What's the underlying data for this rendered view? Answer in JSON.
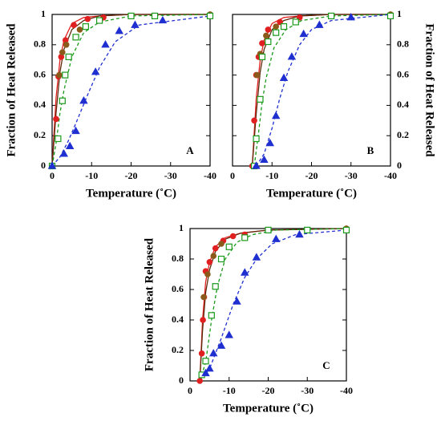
{
  "chart_data": [
    {
      "type": "scatter",
      "panel": "A",
      "xlabel": "Temperature (˚C)",
      "ylabel": "Fraction of Heat Released",
      "yaxis_side": "left",
      "xlim": [
        0,
        -40
      ],
      "ylim": [
        0,
        1
      ],
      "xticks": [
        0,
        -10,
        -20,
        -30,
        -40
      ],
      "yticks": [
        0,
        0.2,
        0.4,
        0.6,
        0.8,
        1
      ],
      "lines": [
        {
          "color": "#e02020",
          "dashed": false,
          "x": [
            0,
            -1,
            -2,
            -3,
            -5,
            -8,
            -12,
            -20,
            -40
          ],
          "values": [
            0,
            0.45,
            0.7,
            0.83,
            0.94,
            0.98,
            0.99,
            1,
            1
          ]
        },
        {
          "color": "#5a2a0a",
          "dashed": false,
          "x": [
            0,
            -1,
            -2,
            -3,
            -5,
            -8,
            -12,
            -20,
            -40
          ],
          "values": [
            0,
            0.35,
            0.62,
            0.77,
            0.9,
            0.96,
            0.99,
            1,
            1
          ]
        },
        {
          "color": "#1a9a1a",
          "dashed": true,
          "x": [
            0,
            -1,
            -2,
            -3,
            -5,
            -8,
            -12,
            -20,
            -40
          ],
          "values": [
            0,
            0.15,
            0.35,
            0.5,
            0.72,
            0.88,
            0.95,
            0.99,
            1
          ]
        },
        {
          "color": "#1f2fd0",
          "dashed": true,
          "x": [
            0,
            -2,
            -4,
            -6,
            -9,
            -12,
            -16,
            -22,
            -40
          ],
          "values": [
            0,
            0.06,
            0.16,
            0.28,
            0.47,
            0.65,
            0.82,
            0.93,
            0.99
          ]
        }
      ],
      "series": [
        {
          "color": "#e02020",
          "marker": "circle",
          "filled": true,
          "x": [
            0,
            -1,
            -1.6,
            -2.3,
            -3.4,
            -5.5,
            -9,
            -13,
            -40
          ],
          "values": [
            0,
            0.31,
            0.59,
            0.72,
            0.83,
            0.93,
            0.97,
            0.98,
            1
          ]
        },
        {
          "color": "#8b5a1a",
          "marker": "circle",
          "filled": true,
          "x": [
            -1.8,
            -2.6,
            -3.6,
            -7,
            -40
          ],
          "values": [
            0.6,
            0.75,
            0.8,
            0.9,
            1
          ]
        },
        {
          "color": "#1a9a1a",
          "marker": "square",
          "filled": false,
          "x": [
            0,
            -1.5,
            -2.6,
            -3.3,
            -4.2,
            -6,
            -8.5,
            -12,
            -20,
            -26,
            -40
          ],
          "values": [
            0,
            0.18,
            0.43,
            0.6,
            0.72,
            0.85,
            0.92,
            0.96,
            0.99,
            0.99,
            0.99
          ]
        },
        {
          "color": "#1f2fd0",
          "marker": "triangle",
          "filled": true,
          "x": [
            0,
            -3,
            -4.5,
            -6,
            -8,
            -11,
            -13.5,
            -17,
            -21,
            -28
          ],
          "values": [
            0,
            0.08,
            0.13,
            0.23,
            0.43,
            0.62,
            0.8,
            0.89,
            0.93,
            0.96
          ]
        }
      ]
    },
    {
      "type": "scatter",
      "panel": "B",
      "xlabel": "Temperature (˚C)",
      "ylabel": "Fraction of Heat Released",
      "yaxis_side": "right",
      "xlim": [
        0,
        -40
      ],
      "ylim": [
        0,
        1
      ],
      "xticks": [
        0,
        -10,
        -20,
        -30,
        -40
      ],
      "yticks": [
        0,
        0.2,
        0.4,
        0.6,
        0.8,
        1
      ],
      "lines": [
        {
          "color": "#e02020",
          "dashed": false,
          "x": [
            -5,
            -6,
            -7,
            -8,
            -10,
            -13,
            -17,
            -25,
            -40
          ],
          "values": [
            0,
            0.45,
            0.7,
            0.83,
            0.94,
            0.98,
            0.99,
            1,
            1
          ]
        },
        {
          "color": "#5a2a0a",
          "dashed": false,
          "x": [
            -5,
            -6,
            -7,
            -8,
            -10,
            -13,
            -17,
            -25,
            -40
          ],
          "values": [
            0,
            0.35,
            0.62,
            0.77,
            0.9,
            0.96,
            0.99,
            1,
            1
          ]
        },
        {
          "color": "#1a9a1a",
          "dashed": true,
          "x": [
            -5.5,
            -6.5,
            -7.5,
            -8.5,
            -10.5,
            -13.5,
            -17.5,
            -25,
            -40
          ],
          "values": [
            0,
            0.2,
            0.42,
            0.58,
            0.78,
            0.9,
            0.96,
            0.99,
            1
          ]
        },
        {
          "color": "#1f2fd0",
          "dashed": true,
          "x": [
            -6,
            -8,
            -10,
            -12,
            -14,
            -17,
            -20,
            -25,
            -40
          ],
          "values": [
            0,
            0.08,
            0.25,
            0.45,
            0.62,
            0.8,
            0.9,
            0.96,
            1
          ]
        }
      ],
      "series": [
        {
          "color": "#e02020",
          "marker": "circle",
          "filled": true,
          "x": [
            -5,
            -5.5,
            -6,
            -6.6,
            -7.5,
            -9,
            -12,
            -17,
            -40
          ],
          "values": [
            0,
            0.3,
            0.6,
            0.72,
            0.81,
            0.9,
            0.95,
            0.98,
            1
          ]
        },
        {
          "color": "#8b5a1a",
          "marker": "circle",
          "filled": true,
          "x": [
            -6.2,
            -7,
            -8.5,
            -11,
            -40
          ],
          "values": [
            0.6,
            0.74,
            0.86,
            0.92,
            1
          ]
        },
        {
          "color": "#1a9a1a",
          "marker": "square",
          "filled": false,
          "x": [
            -5.5,
            -6,
            -7,
            -7.5,
            -9,
            -11,
            -13,
            -16,
            -25,
            -40
          ],
          "values": [
            0,
            0.18,
            0.44,
            0.72,
            0.82,
            0.88,
            0.92,
            0.95,
            0.99,
            0.99
          ]
        },
        {
          "color": "#1f2fd0",
          "marker": "triangle",
          "filled": true,
          "x": [
            -6,
            -8,
            -9.5,
            -11,
            -13,
            -15,
            -18,
            -22,
            -30
          ],
          "values": [
            0,
            0.04,
            0.15,
            0.33,
            0.58,
            0.72,
            0.87,
            0.93,
            0.98
          ]
        }
      ]
    },
    {
      "type": "scatter",
      "panel": "C",
      "xlabel": "Temperature (˚C)",
      "ylabel": "Fraction of Heat Released",
      "yaxis_side": "left",
      "xlim": [
        0,
        -40
      ],
      "ylim": [
        0,
        1
      ],
      "xticks": [
        0,
        -10,
        -20,
        -30,
        -40
      ],
      "yticks": [
        0,
        0.2,
        0.4,
        0.6,
        0.8,
        1
      ],
      "lines": [
        {
          "color": "#e02020",
          "dashed": false,
          "x": [
            -2.5,
            -3.2,
            -4,
            -5,
            -6.5,
            -9,
            -13,
            -20,
            -40
          ],
          "values": [
            0,
            0.4,
            0.65,
            0.78,
            0.88,
            0.94,
            0.97,
            0.99,
            1
          ]
        },
        {
          "color": "#5a2a0a",
          "dashed": false,
          "x": [
            -2.5,
            -3.2,
            -4,
            -5,
            -6.5,
            -9,
            -13,
            -20,
            -40
          ],
          "values": [
            0,
            0.33,
            0.58,
            0.73,
            0.85,
            0.93,
            0.97,
            0.99,
            1
          ]
        },
        {
          "color": "#1a9a1a",
          "dashed": true,
          "x": [
            -2.5,
            -4,
            -5.5,
            -7,
            -9,
            -12,
            -16,
            -22,
            -40
          ],
          "values": [
            0,
            0.12,
            0.4,
            0.62,
            0.8,
            0.91,
            0.96,
            0.99,
            1
          ]
        },
        {
          "color": "#1f2fd0",
          "dashed": true,
          "x": [
            -2.5,
            -5,
            -8,
            -11,
            -14,
            -17,
            -21,
            -27,
            -40
          ],
          "values": [
            0,
            0.08,
            0.28,
            0.5,
            0.68,
            0.8,
            0.9,
            0.96,
            0.99
          ]
        }
      ],
      "series": [
        {
          "color": "#e02020",
          "marker": "circle",
          "filled": true,
          "x": [
            -2.5,
            -3,
            -3.3,
            -3.6,
            -4,
            -5,
            -6.5,
            -8.5,
            -11,
            -14,
            -40
          ],
          "values": [
            0,
            0.18,
            0.4,
            0.55,
            0.72,
            0.78,
            0.87,
            0.92,
            0.95,
            0.96,
            1
          ]
        },
        {
          "color": "#8b5a1a",
          "marker": "circle",
          "filled": true,
          "x": [
            -3.5,
            -4.5,
            -6,
            -8,
            -40
          ],
          "values": [
            0.55,
            0.7,
            0.82,
            0.9,
            1
          ]
        },
        {
          "color": "#1a9a1a",
          "marker": "square",
          "filled": false,
          "x": [
            -3,
            -4,
            -5.5,
            -6.5,
            -8,
            -10,
            -14,
            -20,
            -30,
            -40
          ],
          "values": [
            0.04,
            0.13,
            0.43,
            0.62,
            0.8,
            0.88,
            0.94,
            0.99,
            0.99,
            0.99
          ]
        },
        {
          "color": "#1f2fd0",
          "marker": "triangle",
          "filled": true,
          "x": [
            -4,
            -5,
            -6,
            -8,
            -10,
            -12,
            -14,
            -17,
            -22,
            -28
          ],
          "values": [
            0.05,
            0.08,
            0.18,
            0.23,
            0.3,
            0.52,
            0.71,
            0.81,
            0.93,
            0.96
          ]
        }
      ]
    }
  ]
}
